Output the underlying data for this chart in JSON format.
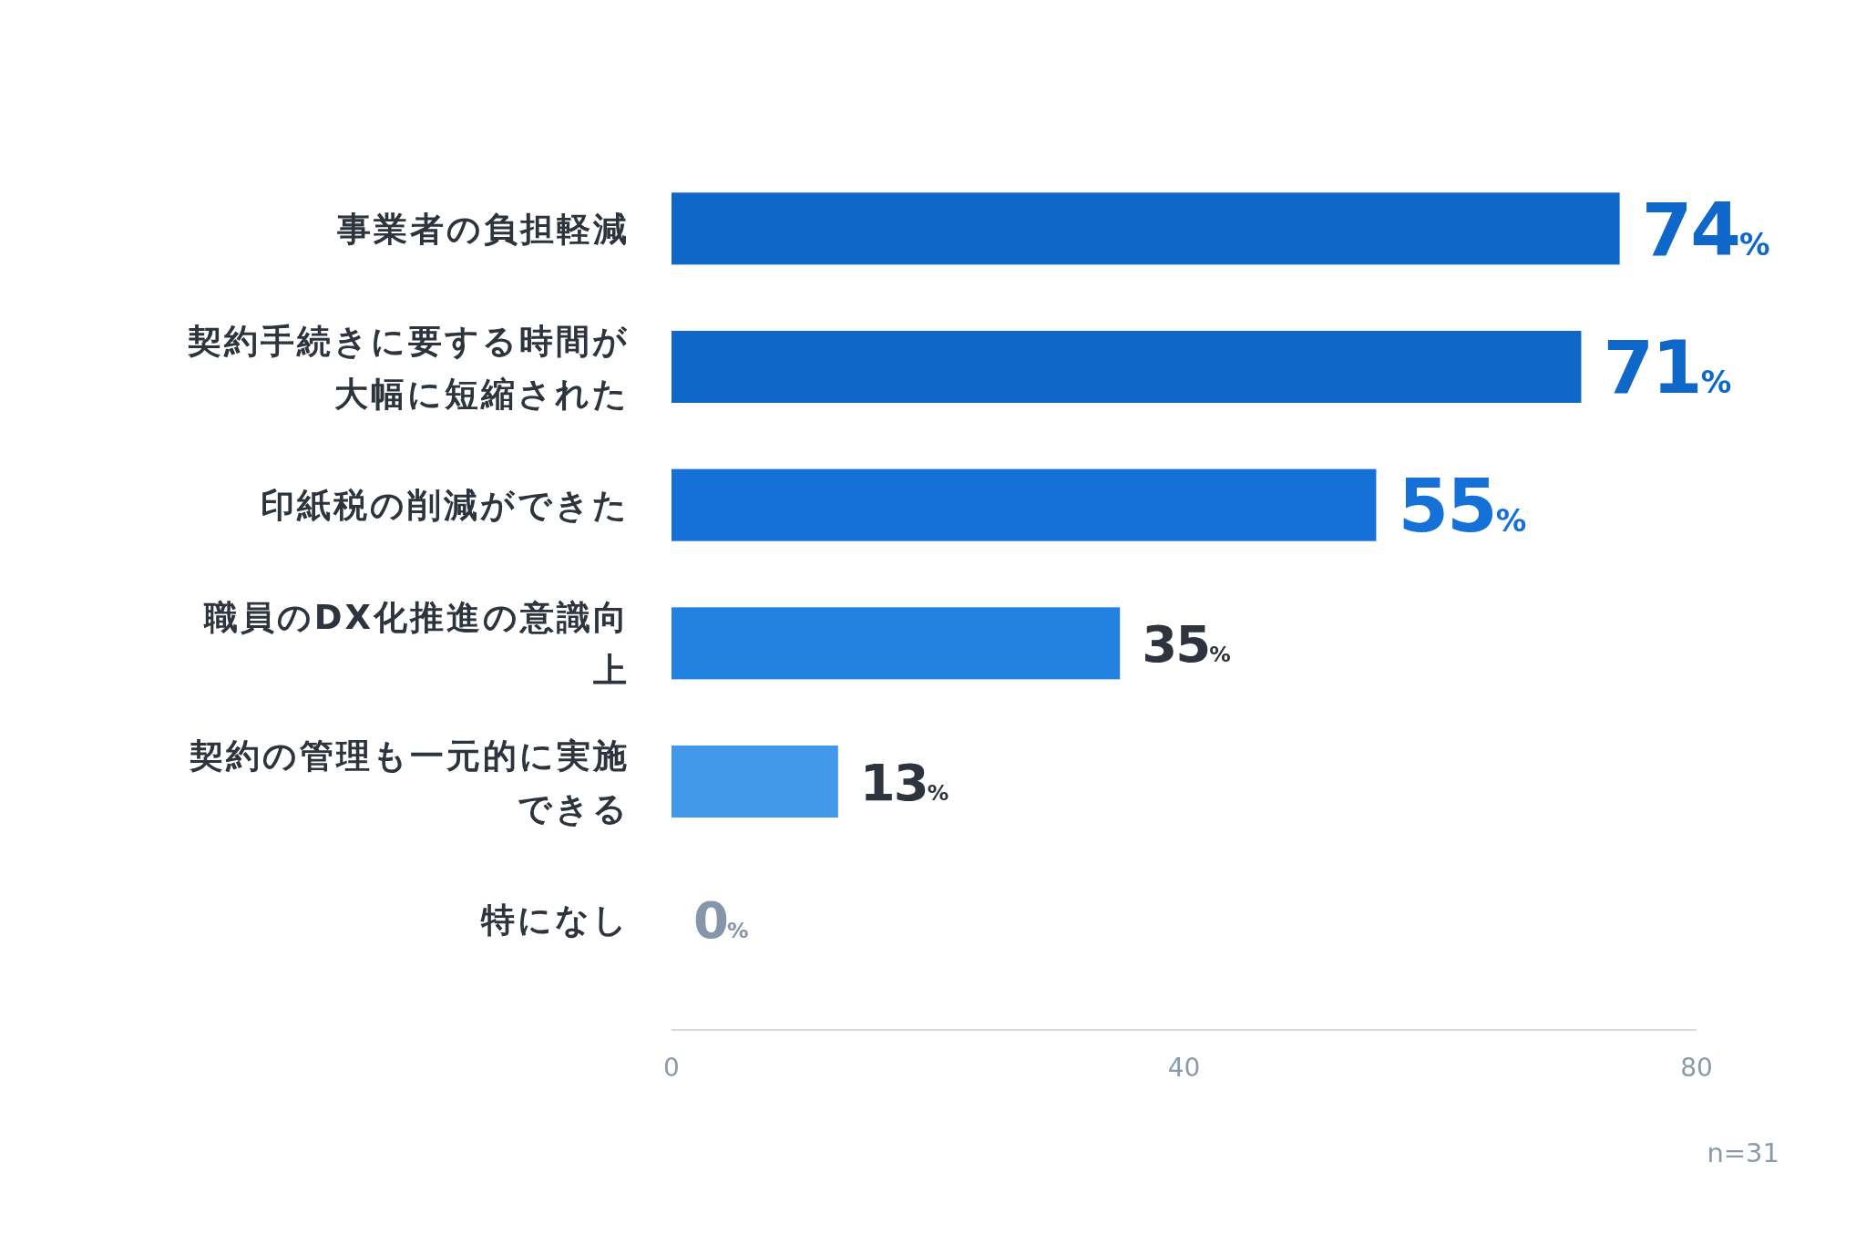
{
  "chart_data": {
    "type": "bar",
    "orientation": "horizontal",
    "categories": [
      "事業者の負担軽減",
      "契約手続きに要する時間が大幅に短縮された",
      "印紙税の削減ができた",
      "職員のDX化推進の意識向上",
      "契約の管理も一元的に実施できる",
      "特になし"
    ],
    "values": [
      74,
      71,
      55,
      35,
      13,
      0
    ],
    "colors": [
      "#0e67c9",
      "#0e67c9",
      "#1570d8",
      "#2381e1",
      "#4299eb",
      "#8496a9"
    ],
    "value_labels": [
      "74%",
      "71%",
      "55%",
      "35%",
      "13%",
      "0%"
    ],
    "xlim": [
      0,
      80
    ],
    "xticks": [
      0,
      40,
      80
    ],
    "grid": false,
    "annotations": [
      "n=31"
    ]
  }
}
